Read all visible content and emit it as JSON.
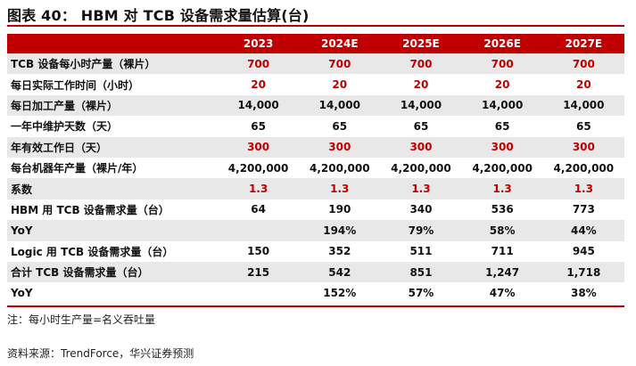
{
  "title": "图表 40：  HBM 对 TCB 设备需求量估算(台)",
  "columns": [
    "",
    "2023",
    "2024E",
    "2025E",
    "2026E",
    "2027E"
  ],
  "rows": [
    {
      "label": "TCB 设备每小时产量（裸片）",
      "values": [
        "700",
        "700",
        "700",
        "700",
        "700"
      ],
      "red": true,
      "alt": true
    },
    {
      "label": "每日实际工作时间（小时）",
      "values": [
        "20",
        "20",
        "20",
        "20",
        "20"
      ],
      "red": true,
      "alt": false
    },
    {
      "label": "每日加工产量（裸片）",
      "values": [
        "14,000",
        "14,000",
        "14,000",
        "14,000",
        "14,000"
      ],
      "red": false,
      "alt": true
    },
    {
      "label": "一年中维护天数（天）",
      "values": [
        "65",
        "65",
        "65",
        "65",
        "65"
      ],
      "red": false,
      "alt": false
    },
    {
      "label": "年有效工作日（天）",
      "values": [
        "300",
        "300",
        "300",
        "300",
        "300"
      ],
      "red": true,
      "alt": true
    },
    {
      "label": "每台机器年产量（裸片/年）",
      "values": [
        "4,200,000",
        "4,200,000",
        "4,200,000",
        "4,200,000",
        "4,200,000"
      ],
      "red": false,
      "alt": false
    },
    {
      "label": "系数",
      "values": [
        "1.3",
        "1.3",
        "1.3",
        "1.3",
        "1.3"
      ],
      "red": true,
      "alt": true
    },
    {
      "label": "HBM 用 TCB 设备需求量（台）",
      "values": [
        "64",
        "190",
        "340",
        "536",
        "773"
      ],
      "red": false,
      "alt": false
    },
    {
      "label": "YoY",
      "values": [
        "",
        "194%",
        "79%",
        "58%",
        "44%"
      ],
      "red": false,
      "alt": true
    },
    {
      "label": "Logic 用 TCB 设备需求量（台）",
      "values": [
        "150",
        "352",
        "511",
        "711",
        "945"
      ],
      "red": false,
      "alt": false
    },
    {
      "label": "合计 TCB 设备需求量（台）",
      "values": [
        "215",
        "542",
        "851",
        "1,247",
        "1,718"
      ],
      "red": false,
      "alt": true
    },
    {
      "label": "YoY",
      "values": [
        "",
        "152%",
        "57%",
        "47%",
        "38%"
      ],
      "red": false,
      "alt": false
    }
  ],
  "note": "注：每小时生产量=名义吞吐量",
  "source": "资料来源：TrendForce，华兴证券预测",
  "colors": {
    "accent": "#c00000",
    "stripe": "#e8e8e8"
  }
}
